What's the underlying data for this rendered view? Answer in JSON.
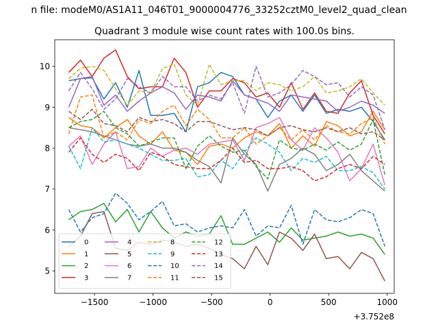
{
  "figure": {
    "suptitle": "n file: modeM0/AS1A11_046T01_9000004776_33252cztM0_level2_quad_clean",
    "title": "Quadrant 3 module wise count rates with 100.0s bins.",
    "offset_label": "+3.752e8"
  },
  "chart_data": {
    "type": "line",
    "title": "Quadrant 3 module wise count rates with 100.0s bins.",
    "xlabel": "",
    "ylabel": "",
    "x_offset": 375200000,
    "xlim": [
      -1840,
      1060
    ],
    "ylim": [
      4.45,
      10.65
    ],
    "x_ticks": [
      -1500,
      -1000,
      -500,
      0,
      500,
      1000
    ],
    "x_tick_labels": [
      "−1500",
      "−1000",
      "−500",
      "0",
      "500",
      "1000"
    ],
    "y_ticks": [
      5,
      6,
      7,
      8,
      9,
      10
    ],
    "y_tick_labels": [
      "5",
      "6",
      "7",
      "8",
      "9",
      "10"
    ],
    "grid": false,
    "legend": "lower-left",
    "legend_columns": 4,
    "x": [
      -1720,
      -1620,
      -1520,
      -1420,
      -1320,
      -1220,
      -1120,
      -1020,
      -920,
      -820,
      -720,
      -620,
      -520,
      -420,
      -320,
      -220,
      -120,
      -20,
      80,
      180,
      280,
      380,
      480,
      580,
      680,
      780,
      880,
      980
    ],
    "series": [
      {
        "name": "0",
        "color": "#1f77b4",
        "dash": "solid",
        "values": [
          9.65,
          9.7,
          9.72,
          9.2,
          9.6,
          9.0,
          9.9,
          8.8,
          8.8,
          8.85,
          8.4,
          9.5,
          9.6,
          9.85,
          9.75,
          9.3,
          9.2,
          8.75,
          9.15,
          9.3,
          8.9,
          9.3,
          8.85,
          8.95,
          8.9,
          9.0,
          8.65,
          8.2
        ]
      },
      {
        "name": "1",
        "color": "#ff7f0e",
        "dash": "solid",
        "values": [
          8.75,
          8.55,
          8.5,
          8.25,
          8.5,
          8.7,
          8.3,
          8.1,
          8.4,
          7.95,
          7.9,
          7.6,
          8.05,
          8.1,
          8.0,
          8.25,
          8.4,
          8.3,
          8.6,
          8.0,
          8.3,
          8.05,
          8.65,
          8.55,
          8.3,
          8.4,
          8.9,
          8.45
        ]
      },
      {
        "name": "2",
        "color": "#2ca02c",
        "dash": "solid",
        "values": [
          6.25,
          6.45,
          6.5,
          6.65,
          6.2,
          6.5,
          5.95,
          6.45,
          6.05,
          5.8,
          5.95,
          5.85,
          5.9,
          6.35,
          5.65,
          5.65,
          5.8,
          5.95,
          5.7,
          6.05,
          5.75,
          5.8,
          5.85,
          5.95,
          5.85,
          5.9,
          5.8,
          5.4
        ]
      },
      {
        "name": "3",
        "color": "#d62728",
        "dash": "solid",
        "values": [
          9.85,
          10.15,
          9.75,
          10.2,
          10.4,
          9.75,
          9.45,
          9.5,
          9.5,
          10.2,
          9.85,
          9.0,
          9.4,
          9.4,
          9.7,
          9.6,
          9.25,
          9.35,
          9.0,
          9.6,
          8.95,
          9.35,
          8.9,
          8.85,
          9.35,
          9.65,
          8.8,
          8.35
        ]
      },
      {
        "name": "4",
        "color": "#9467bd",
        "dash": "solid",
        "values": [
          9.0,
          9.7,
          9.75,
          9.05,
          9.3,
          8.9,
          9.15,
          9.35,
          9.5,
          9.35,
          8.95,
          9.3,
          9.25,
          9.15,
          9.65,
          9.3,
          9.2,
          9.1,
          8.9,
          9.3,
          9.25,
          9.2,
          9.15,
          8.9,
          9.0,
          9.15,
          9.05,
          8.85
        ]
      },
      {
        "name": "5",
        "color": "#8c564b",
        "dash": "solid",
        "values": [
          5.6,
          5.85,
          6.4,
          6.45,
          5.55,
          5.5,
          5.7,
          5.65,
          5.75,
          5.7,
          5.6,
          5.65,
          5.55,
          5.4,
          5.3,
          5.05,
          5.6,
          5.15,
          5.95,
          5.8,
          5.5,
          5.9,
          5.3,
          5.35,
          5.05,
          5.45,
          5.3,
          4.75
        ]
      },
      {
        "name": "6",
        "color": "#e377c2",
        "dash": "solid",
        "values": [
          8.05,
          8.3,
          7.6,
          8.1,
          8.4,
          7.5,
          7.55,
          8.0,
          7.8,
          7.95,
          8.0,
          7.85,
          8.1,
          8.15,
          8.2,
          7.7,
          8.5,
          8.6,
          8.75,
          8.2,
          7.95,
          8.5,
          8.25,
          7.9,
          7.2,
          7.5,
          8.1,
          7.1
        ]
      },
      {
        "name": "7",
        "color": "#7f7f7f",
        "dash": "solid",
        "values": [
          8.5,
          8.45,
          8.4,
          8.3,
          8.2,
          8.1,
          8.05,
          8.1,
          8.0,
          8.0,
          7.9,
          7.7,
          7.55,
          7.15,
          8.25,
          7.85,
          7.6,
          6.95,
          7.6,
          7.75,
          8.0,
          7.85,
          7.45,
          7.6,
          7.85,
          7.45,
          7.2,
          6.95
        ]
      },
      {
        "name": "8",
        "color": "#bcbd22",
        "dash": "dashed",
        "values": [
          9.7,
          9.95,
          10.0,
          9.9,
          9.45,
          9.05,
          9.4,
          9.35,
          9.95,
          10.05,
          9.3,
          9.05,
          10.05,
          9.55,
          9.65,
          9.65,
          9.4,
          9.6,
          9.55,
          9.4,
          9.5,
          9.75,
          9.35,
          9.4,
          9.5,
          9.7,
          9.35,
          9.05
        ]
      },
      {
        "name": "9",
        "color": "#17becf",
        "dash": "dashed",
        "values": [
          8.05,
          7.5,
          8.5,
          8.15,
          8.2,
          8.1,
          8.0,
          7.85,
          7.7,
          7.7,
          7.75,
          7.3,
          7.35,
          7.7,
          7.5,
          7.9,
          8.25,
          8.1,
          7.9,
          7.45,
          7.75,
          7.65,
          7.8,
          7.45,
          7.45,
          7.55,
          7.4,
          7.0
        ]
      },
      {
        "name": "10",
        "color": "#1f77b4",
        "dash": "dashed",
        "values": [
          6.5,
          5.95,
          6.3,
          6.4,
          6.9,
          6.65,
          6.25,
          6.45,
          6.7,
          6.1,
          6.15,
          5.95,
          6.05,
          6.1,
          6.05,
          6.5,
          5.85,
          6.1,
          6.05,
          6.6,
          5.65,
          6.5,
          6.25,
          6.2,
          6.3,
          6.5,
          6.4,
          5.6
        ]
      },
      {
        "name": "11",
        "color": "#ff7f0e",
        "dash": "dashed",
        "values": [
          8.35,
          9.25,
          9.3,
          8.25,
          8.4,
          8.2,
          8.7,
          8.6,
          8.9,
          9.05,
          8.55,
          8.95,
          8.7,
          8.25,
          8.25,
          8.5,
          8.1,
          8.3,
          8.5,
          8.2,
          8.45,
          8.2,
          8.55,
          8.4,
          8.35,
          8.6,
          8.75,
          8.1
        ]
      },
      {
        "name": "12",
        "color": "#2ca02c",
        "dash": "dashed",
        "values": [
          8.5,
          8.65,
          8.7,
          8.9,
          8.5,
          8.35,
          8.05,
          8.15,
          8.25,
          8.25,
          7.5,
          8.05,
          8.3,
          8.05,
          7.9,
          7.95,
          7.55,
          7.25,
          8.2,
          8.0,
          7.95,
          8.1,
          7.95,
          8.15,
          7.95,
          8.1,
          8.7,
          7.35
        ]
      },
      {
        "name": "13",
        "color": "#d62728",
        "dash": "dashed",
        "values": [
          7.9,
          8.25,
          7.85,
          7.65,
          7.85,
          7.75,
          7.45,
          7.9,
          7.8,
          7.6,
          7.55,
          7.5,
          7.5,
          7.7,
          8.0,
          7.65,
          7.7,
          7.5,
          7.5,
          7.55,
          7.45,
          7.2,
          7.3,
          7.5,
          7.6,
          7.5,
          7.8,
          7.6
        ]
      },
      {
        "name": "14",
        "color": "#9467bd",
        "dash": "dashed",
        "values": [
          9.4,
          9.85,
          9.45,
          8.95,
          9.2,
          9.7,
          9.5,
          9.35,
          9.75,
          9.5,
          9.5,
          9.15,
          9.3,
          9.2,
          9.6,
          8.85,
          10.0,
          9.25,
          9.35,
          9.55,
          9.9,
          9.75,
          9.55,
          9.6,
          9.25,
          9.5,
          9.3,
          8.45
        ]
      },
      {
        "name": "15",
        "color": "#8c564b",
        "dash": "dashed",
        "values": [
          8.9,
          8.7,
          8.95,
          8.6,
          8.55,
          8.4,
          8.75,
          8.65,
          8.7,
          8.6,
          8.4,
          8.65,
          8.65,
          8.55,
          8.45,
          8.5,
          8.45,
          8.3,
          8.5,
          8.55,
          8.45,
          8.4,
          8.5,
          8.4,
          8.5,
          8.35,
          8.4,
          8.2
        ]
      }
    ]
  }
}
